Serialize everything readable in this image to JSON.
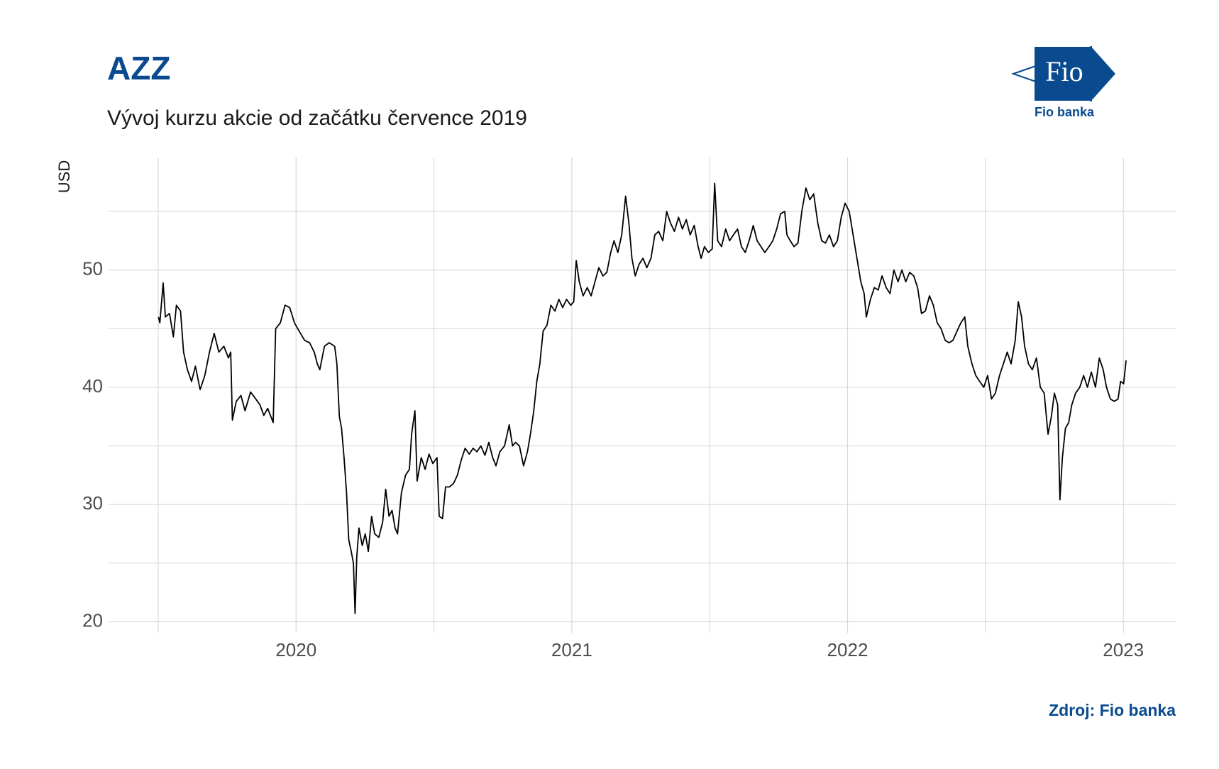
{
  "chart_data": {
    "type": "line",
    "title": "AZZ",
    "subtitle": "Vývoj kurzu akcie od začátku července 2019",
    "y_label": "USD",
    "source": "Zdroj: Fio banka",
    "logo": {
      "mark": "Fio",
      "caption": "Fio banka"
    },
    "color": "#000000",
    "grid": true,
    "xlim": [
      2019.32,
      2023.19
    ],
    "xticks": [
      2020,
      2021,
      2022,
      2023
    ],
    "xminorticks": [
      2019.5,
      2020.5,
      2021.5,
      2022.5
    ],
    "ylim": [
      19.06,
      59.6
    ],
    "yticks": [
      20,
      30,
      40,
      50
    ],
    "yminorticks": [
      25,
      35,
      45,
      55
    ],
    "x": [
      2019.501,
      2019.506,
      2019.518,
      2019.526,
      2019.541,
      2019.555,
      2019.566,
      2019.581,
      2019.592,
      2019.606,
      2019.621,
      2019.635,
      2019.652,
      2019.669,
      2019.686,
      2019.703,
      2019.72,
      2019.738,
      2019.755,
      2019.763,
      2019.769,
      2019.783,
      2019.8,
      2019.815,
      2019.835,
      2019.854,
      2019.869,
      2019.883,
      2019.897,
      2019.917,
      2019.926,
      2019.943,
      2019.96,
      2019.977,
      2019.994,
      2020.011,
      2020.031,
      2020.049,
      2020.066,
      2020.077,
      2020.086,
      2020.103,
      2020.12,
      2020.14,
      2020.148,
      2020.157,
      2020.165,
      2020.174,
      2020.183,
      2020.191,
      2020.2,
      2020.208,
      2020.214,
      2020.22,
      2020.228,
      2020.24,
      2020.251,
      2020.262,
      2020.274,
      2020.285,
      2020.3,
      2020.314,
      2020.325,
      2020.337,
      2020.348,
      2020.359,
      2020.368,
      2020.382,
      2020.397,
      2020.411,
      2020.419,
      2020.431,
      2020.439,
      2020.454,
      2020.468,
      2020.482,
      2020.496,
      2020.511,
      2020.519,
      2020.531,
      2020.542,
      2020.556,
      2020.571,
      2020.585,
      2020.599,
      2020.613,
      2020.628,
      2020.642,
      2020.656,
      2020.67,
      2020.685,
      2020.699,
      2020.713,
      2020.725,
      2020.739,
      2020.756,
      2020.773,
      2020.785,
      2020.796,
      2020.81,
      2020.825,
      2020.839,
      2020.85,
      2020.862,
      2020.873,
      2020.884,
      2020.896,
      2020.91,
      2020.924,
      2020.939,
      2020.953,
      2020.967,
      2020.981,
      2020.996,
      2021.007,
      2021.016,
      2021.027,
      2021.041,
      2021.056,
      2021.07,
      2021.084,
      2021.098,
      2021.113,
      2021.127,
      2021.141,
      2021.153,
      2021.167,
      2021.181,
      2021.195,
      2021.207,
      2021.218,
      2021.23,
      2021.244,
      2021.258,
      2021.272,
      2021.287,
      2021.301,
      2021.315,
      2021.33,
      2021.344,
      2021.358,
      2021.372,
      2021.387,
      2021.401,
      2021.415,
      2021.429,
      2021.444,
      2021.458,
      2021.469,
      2021.481,
      2021.495,
      2021.509,
      2021.518,
      2021.529,
      2021.543,
      2021.558,
      2021.572,
      2021.586,
      2021.601,
      2021.615,
      2021.629,
      2021.643,
      2021.658,
      2021.672,
      2021.686,
      2021.7,
      2021.715,
      2021.729,
      2021.743,
      2021.757,
      2021.772,
      2021.78,
      2021.792,
      2021.806,
      2021.82,
      2021.834,
      2021.849,
      2021.863,
      2021.877,
      2021.892,
      2021.906,
      2021.92,
      2021.934,
      2021.949,
      2021.963,
      2021.977,
      2021.991,
      2022.006,
      2022.02,
      2022.034,
      2022.048,
      2022.06,
      2022.068,
      2022.083,
      2022.097,
      2022.111,
      2022.125,
      2022.14,
      2022.154,
      2022.168,
      2022.183,
      2022.197,
      2022.211,
      2022.225,
      2022.24,
      2022.254,
      2022.268,
      2022.282,
      2022.297,
      2022.311,
      2022.325,
      2022.339,
      2022.354,
      2022.368,
      2022.382,
      2022.397,
      2022.411,
      2022.425,
      2022.436,
      2022.451,
      2022.465,
      2022.479,
      2022.494,
      2022.508,
      2022.522,
      2022.536,
      2022.551,
      2022.565,
      2022.579,
      2022.593,
      2022.608,
      2022.619,
      2022.631,
      2022.642,
      2022.656,
      2022.67,
      2022.685,
      2022.699,
      2022.713,
      2022.727,
      2022.739,
      2022.75,
      2022.762,
      2022.77,
      2022.779,
      2022.79,
      2022.802,
      2022.813,
      2022.827,
      2022.842,
      2022.856,
      2022.87,
      2022.884,
      2022.899,
      2022.913,
      2022.927,
      2022.939,
      2022.953,
      2022.967,
      2022.981,
      2022.99,
      2023.001,
      2023.01
    ],
    "values": [
      46,
      45.5,
      48.9,
      46,
      46.3,
      44.3,
      47,
      46.5,
      43,
      41.5,
      40.5,
      41.8,
      39.8,
      41,
      43,
      44.6,
      43,
      43.5,
      42.5,
      43,
      37.2,
      38.8,
      39.3,
      38,
      39.6,
      39,
      38.5,
      37.6,
      38.2,
      37,
      45,
      45.5,
      47,
      46.8,
      45.5,
      44.8,
      44,
      43.8,
      43,
      42,
      41.5,
      43.5,
      43.8,
      43.5,
      42,
      37.5,
      36.5,
      34,
      31,
      27,
      26,
      25,
      20.7,
      25.5,
      28,
      26.5,
      27.5,
      26,
      29,
      27.5,
      27.2,
      28.5,
      31.3,
      29,
      29.5,
      28,
      27.5,
      31,
      32.5,
      33,
      36,
      38,
      32,
      34,
      33,
      34.3,
      33.5,
      34,
      29,
      28.8,
      31.5,
      31.5,
      31.8,
      32.5,
      33.8,
      34.8,
      34.3,
      34.8,
      34.5,
      35,
      34.2,
      35.3,
      34,
      33.3,
      34.5,
      35,
      36.8,
      35,
      35.3,
      35,
      33.3,
      34.5,
      36,
      38,
      40.5,
      42,
      44.8,
      45.3,
      47,
      46.5,
      47.5,
      46.8,
      47.5,
      47,
      47.3,
      50.8,
      49,
      47.8,
      48.5,
      47.8,
      49,
      50.2,
      49.5,
      49.8,
      51.5,
      52.5,
      51.5,
      53,
      56.3,
      54,
      51,
      49.5,
      50.5,
      51,
      50.2,
      51,
      53,
      53.3,
      52.5,
      55,
      54,
      53.3,
      54.5,
      53.5,
      54.3,
      53,
      53.8,
      52,
      51,
      52,
      51.5,
      51.8,
      57.4,
      52.5,
      52,
      53.5,
      52.5,
      53,
      53.5,
      52,
      51.5,
      52.5,
      53.8,
      52.5,
      52,
      51.5,
      52,
      52.5,
      53.5,
      54.8,
      55,
      53,
      52.5,
      52,
      52.3,
      55,
      57,
      56,
      56.5,
      54,
      52.5,
      52.3,
      53,
      52,
      52.5,
      54.5,
      55.7,
      55,
      53,
      51,
      49,
      48,
      46,
      47.5,
      48.5,
      48.3,
      49.5,
      48.5,
      48,
      50,
      49,
      50,
      49,
      49.8,
      49.5,
      48.5,
      46.3,
      46.5,
      47.8,
      47,
      45.5,
      45,
      44,
      43.8,
      44,
      44.8,
      45.5,
      46,
      43.5,
      42,
      41,
      40.5,
      40,
      41,
      39,
      39.5,
      41,
      42,
      43,
      42,
      44,
      47.3,
      46,
      43.5,
      42,
      41.5,
      42.5,
      40,
      39.5,
      36,
      37.5,
      39.5,
      38.5,
      30.4,
      34,
      36.5,
      37,
      38.5,
      39.5,
      40,
      41,
      40,
      41.3,
      40,
      42.5,
      41.5,
      40,
      39,
      38.8,
      39,
      40.5,
      40.3,
      42.3
    ]
  }
}
